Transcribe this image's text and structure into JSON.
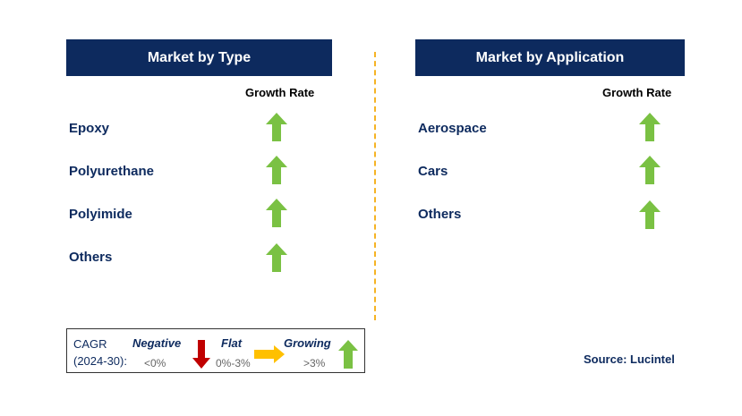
{
  "left_panel": {
    "title": "Market by Type",
    "growth_header": "Growth Rate",
    "rows": [
      {
        "label": "Epoxy",
        "trend": "growing"
      },
      {
        "label": "Polyurethane",
        "trend": "growing"
      },
      {
        "label": "Polyimide",
        "trend": "growing"
      },
      {
        "label": "Others",
        "trend": "growing"
      }
    ]
  },
  "right_panel": {
    "title": "Market by Application",
    "growth_header": "Growth Rate",
    "rows": [
      {
        "label": "Aerospace",
        "trend": "growing"
      },
      {
        "label": "Cars",
        "trend": "growing"
      },
      {
        "label": "Others",
        "trend": "growing"
      }
    ]
  },
  "legend": {
    "cagr_label": "CAGR",
    "period_label": "(2024-30):",
    "negative": {
      "label": "Negative",
      "range": "<0%",
      "icon": "down-arrow-icon",
      "color": "#c00000"
    },
    "flat": {
      "label": "Flat",
      "range": "0%-3%",
      "icon": "right-arrow-icon",
      "color": "#ffc000"
    },
    "growing": {
      "label": "Growing",
      "range": ">3%",
      "icon": "up-arrow-icon",
      "color": "#7ac143"
    }
  },
  "source": "Source: Lucintel",
  "colors": {
    "header_bg": "#0d2a5e",
    "growing": "#7ac143",
    "divider": "#f5b324"
  }
}
